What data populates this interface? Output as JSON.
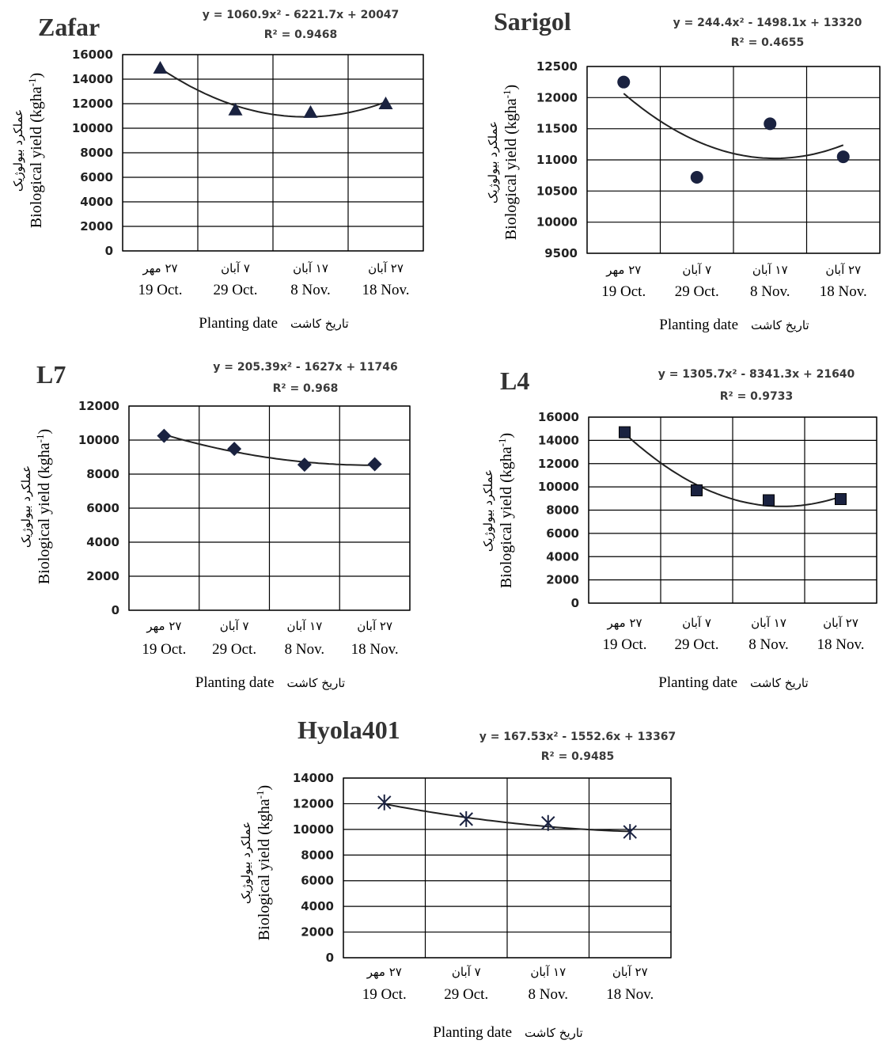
{
  "x_categories_fa": [
    "۲۷ مهر",
    "۷ آبان",
    "۱۷ آبان",
    "۲۷ آبان"
  ],
  "x_categories_en": [
    "19 Oct.",
    "29 Oct.",
    "8 Nov.",
    "18 Nov."
  ],
  "x_label_en": "Planting date",
  "x_label_fa": "تاریخ کاشت",
  "y_label_fa": "عملکرد بیولوژیک",
  "y_label_en": "Biological yield (kgha",
  "y_label_sup": "-1",
  "y_label_close": ")",
  "colors": {
    "marker": "#1a2240",
    "line": "#222222",
    "grid": "#000000",
    "text": "#222222"
  },
  "chart_data": [
    {
      "type": "scatter",
      "title": "Zafar",
      "equation": "y = 1060.9x² - 6221.7x + 20047",
      "r2": "R² = 0.9468",
      "fit": [
        1060.9,
        -6221.7,
        20047
      ],
      "marker": "triangle",
      "ylim": [
        0,
        16000
      ],
      "yticks": [
        0,
        2000,
        4000,
        6000,
        8000,
        10000,
        12000,
        14000,
        16000
      ],
      "series": [
        {
          "values": [
            14900,
            11500,
            11300,
            12000
          ]
        }
      ]
    },
    {
      "type": "scatter",
      "title": "Sarigol",
      "equation": "y = 244.4x² - 1498.1x + 13320",
      "r2": "R² = 0.4655",
      "fit": [
        244.4,
        -1498.1,
        13320
      ],
      "marker": "circle",
      "ylim": [
        9500,
        12500
      ],
      "yticks": [
        9500,
        10000,
        10500,
        11000,
        11500,
        12000,
        12500
      ],
      "series": [
        {
          "values": [
            12250,
            10720,
            11580,
            11050
          ]
        }
      ]
    },
    {
      "type": "scatter",
      "title": "L7",
      "equation": "y = 205.39x² - 1627x + 11746",
      "r2": "R² = 0.968",
      "fit": [
        205.39,
        -1627,
        11746
      ],
      "marker": "diamond",
      "ylim": [
        0,
        12000
      ],
      "yticks": [
        0,
        2000,
        4000,
        6000,
        8000,
        10000,
        12000
      ],
      "series": [
        {
          "values": [
            10250,
            9480,
            8550,
            8580
          ]
        }
      ]
    },
    {
      "type": "scatter",
      "title": "L4",
      "equation": "y = 1305.7x² - 8341.3x + 21640",
      "r2": "R² = 0.9733",
      "fit": [
        1305.7,
        -8341.3,
        21640
      ],
      "marker": "square",
      "ylim": [
        0,
        16000
      ],
      "yticks": [
        0,
        2000,
        4000,
        6000,
        8000,
        10000,
        12000,
        14000,
        16000
      ],
      "series": [
        {
          "values": [
            14700,
            9700,
            8850,
            8950
          ]
        }
      ]
    },
    {
      "type": "scatter",
      "title": "Hyola401",
      "equation": "y = 167.53x² - 1552.6x + 13367",
      "r2": "R² = 0.9485",
      "fit": [
        167.53,
        -1552.6,
        13367
      ],
      "marker": "star",
      "ylim": [
        0,
        14000
      ],
      "yticks": [
        0,
        2000,
        4000,
        6000,
        8000,
        10000,
        12000,
        14000
      ],
      "series": [
        {
          "values": [
            12100,
            10800,
            10500,
            9800
          ]
        }
      ]
    }
  ]
}
